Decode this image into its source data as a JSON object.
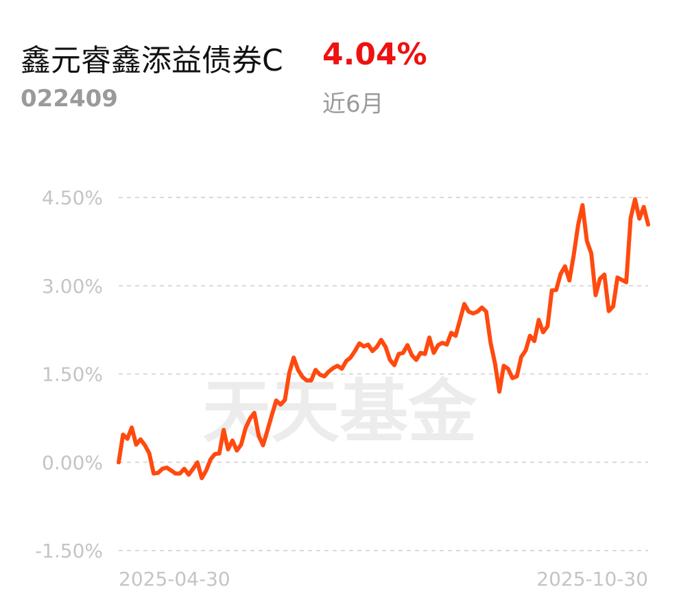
{
  "fund": {
    "name": "鑫元睿鑫添益债券C",
    "code": "022409",
    "return": "4.04%",
    "period": "近6月"
  },
  "watermark": "天天基金",
  "colors": {
    "line": "#ff4a0f",
    "return": "#ee1111",
    "grid": "#d9d9d9",
    "tick": "#c4c4c4"
  },
  "chart_data": {
    "type": "line",
    "title": "",
    "xlabel": "",
    "ylabel": "",
    "ylim": [
      -1.5,
      4.5
    ],
    "yticks": [
      4.5,
      3.0,
      1.5,
      0.0,
      -1.5
    ],
    "ytick_labels": [
      "4.50%",
      "3.00%",
      "1.50%",
      "0.00%",
      "-1.50%"
    ],
    "xtick_labels": [
      "2025-04-30",
      "2025-10-30"
    ],
    "grid": true,
    "x_start": "2025-04-30",
    "x_end": "2025-10-30",
    "series": [
      {
        "name": "",
        "values": [
          0.0,
          0.47,
          0.4,
          0.59,
          0.3,
          0.39,
          0.29,
          0.15,
          -0.19,
          -0.18,
          -0.11,
          -0.09,
          -0.14,
          -0.19,
          -0.19,
          -0.11,
          -0.21,
          -0.11,
          0.0,
          -0.27,
          -0.14,
          0.05,
          0.14,
          0.15,
          0.55,
          0.22,
          0.37,
          0.2,
          0.3,
          0.58,
          0.74,
          0.84,
          0.45,
          0.29,
          0.54,
          0.8,
          1.05,
          0.98,
          1.06,
          1.52,
          1.78,
          1.57,
          1.45,
          1.39,
          1.39,
          1.57,
          1.49,
          1.46,
          1.54,
          1.6,
          1.64,
          1.59,
          1.72,
          1.78,
          1.89,
          2.02,
          1.97,
          2.0,
          1.89,
          1.96,
          2.08,
          1.96,
          1.74,
          1.65,
          1.84,
          1.86,
          1.99,
          1.82,
          1.74,
          1.86,
          1.84,
          2.12,
          1.86,
          1.99,
          2.03,
          2.0,
          2.2,
          2.15,
          2.42,
          2.69,
          2.56,
          2.53,
          2.56,
          2.63,
          2.56,
          2.03,
          1.68,
          1.2,
          1.64,
          1.59,
          1.43,
          1.46,
          1.79,
          1.9,
          2.15,
          2.06,
          2.42,
          2.21,
          2.31,
          2.92,
          2.93,
          3.2,
          3.33,
          3.09,
          3.52,
          4.03,
          4.37,
          3.76,
          3.55,
          2.84,
          3.12,
          3.19,
          2.57,
          2.65,
          3.14,
          3.1,
          3.06,
          4.15,
          4.47,
          4.14,
          4.34,
          4.04
        ]
      }
    ]
  }
}
